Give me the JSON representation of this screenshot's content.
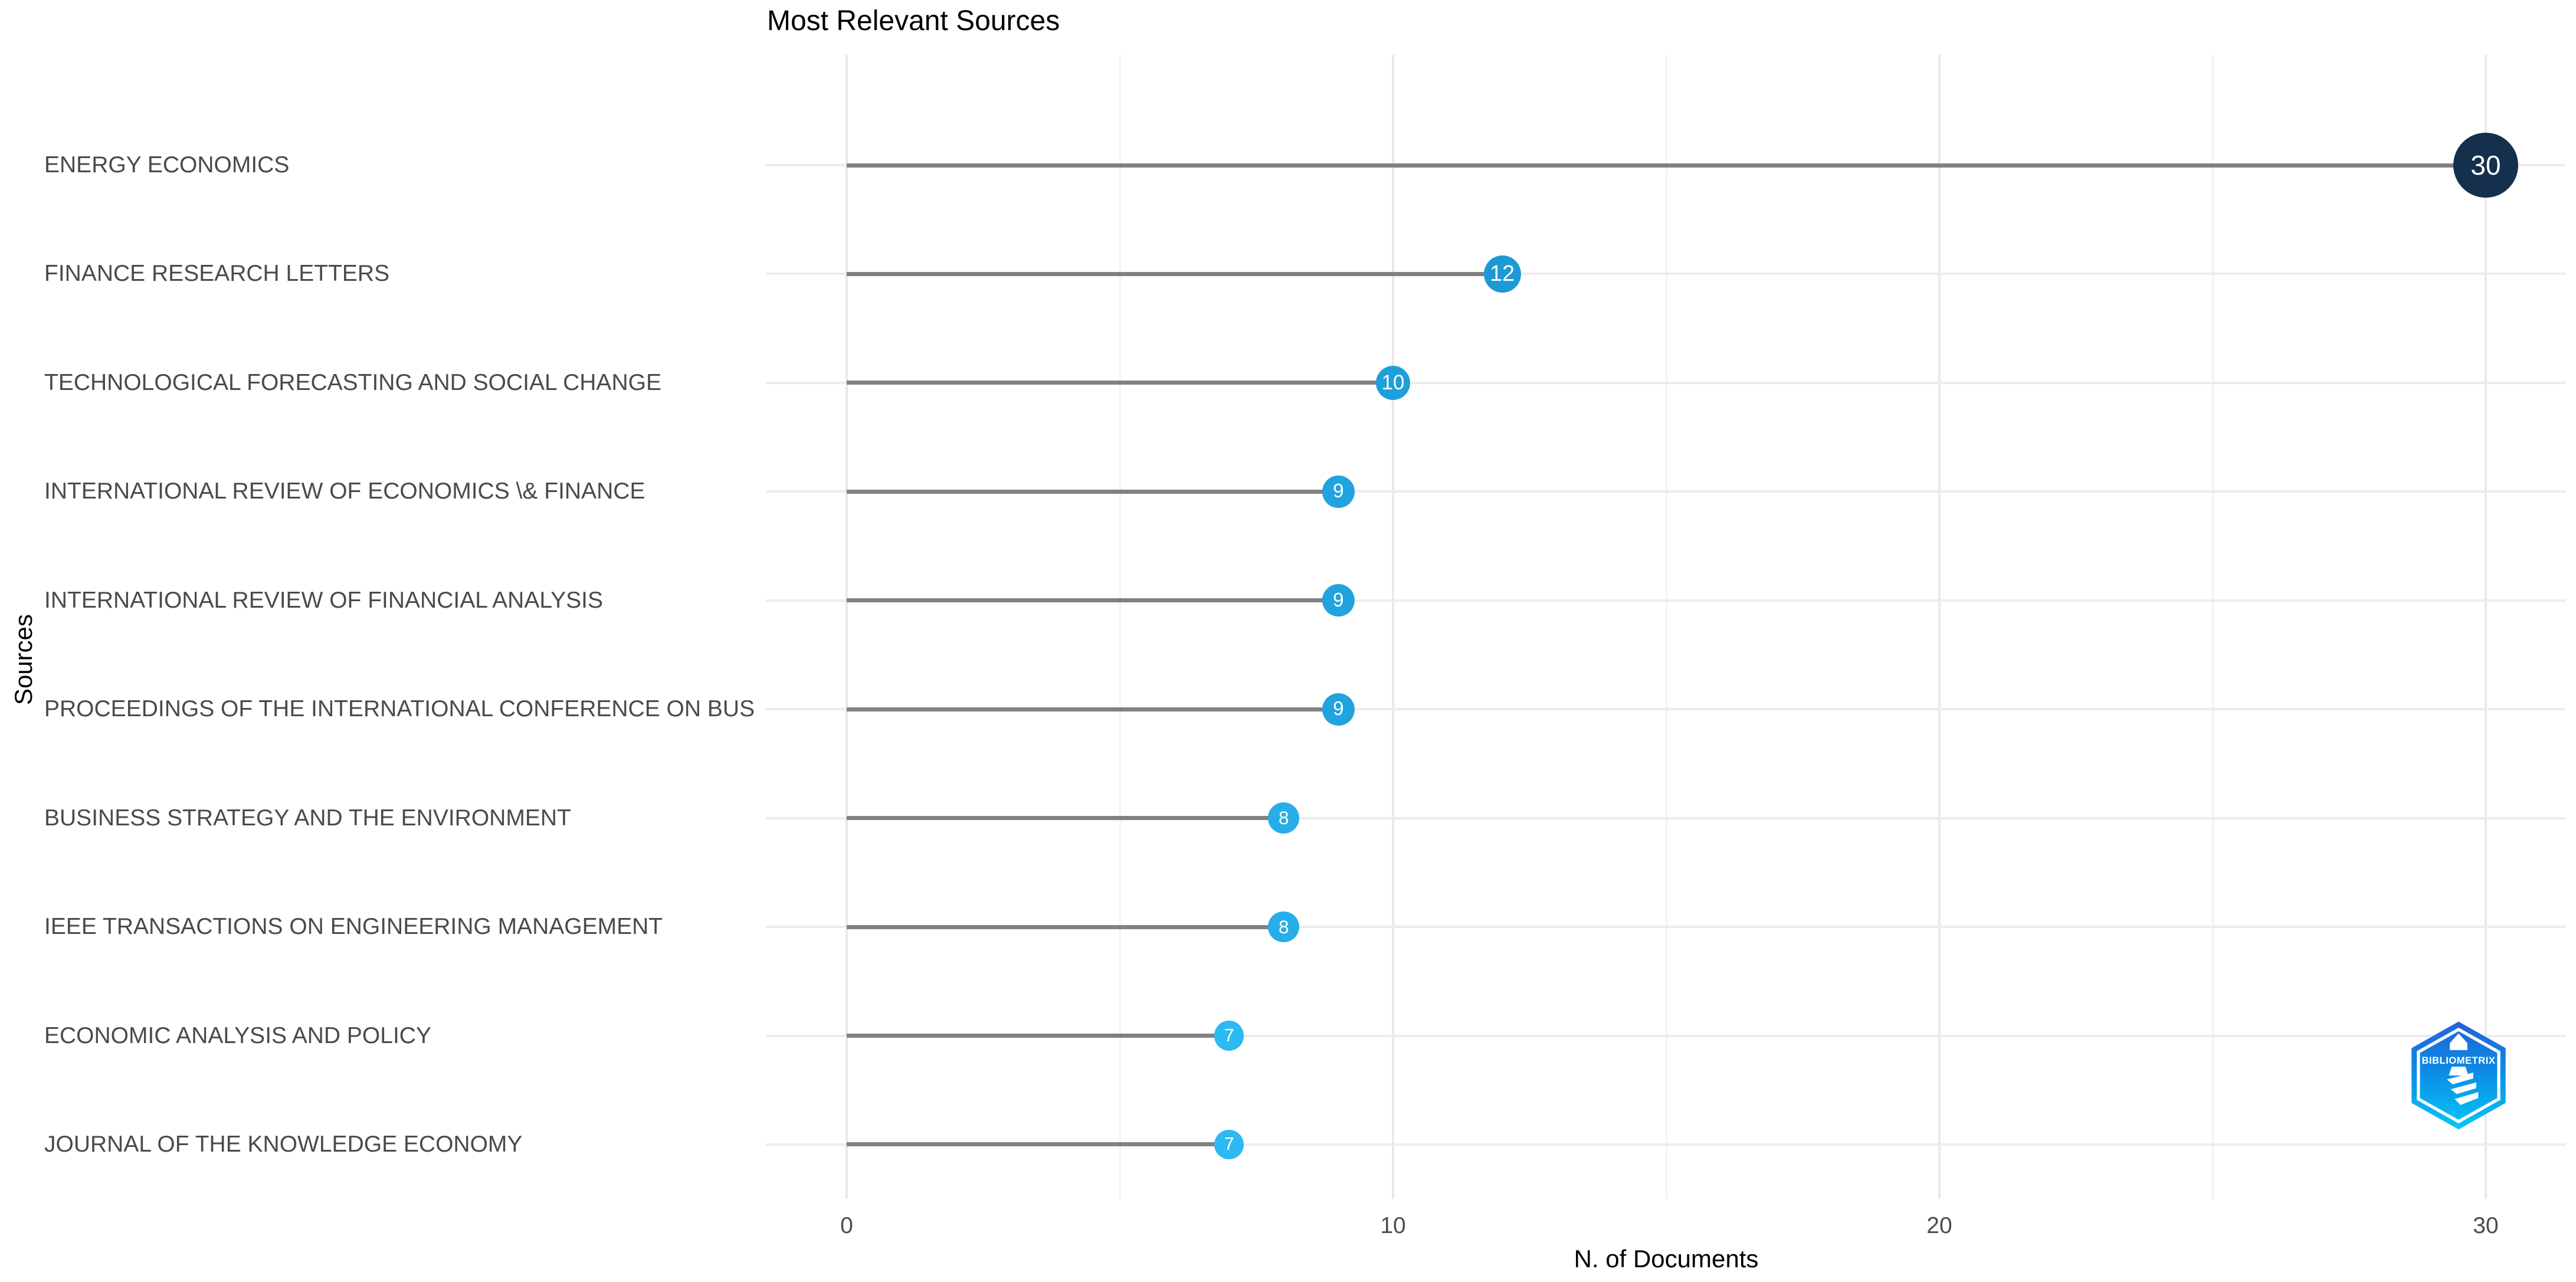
{
  "title": "Most Relevant Sources",
  "x_axis": {
    "label": "N. of Documents",
    "tick_labels": [
      "0",
      "10",
      "20",
      "30"
    ]
  },
  "y_axis": {
    "label": "Sources"
  },
  "chart_data": {
    "type": "lollipop",
    "orientation": "horizontal",
    "title": "Most Relevant Sources",
    "xlabel": "N. of Documents",
    "ylabel": "Sources",
    "categories": [
      "ENERGY ECONOMICS",
      "FINANCE RESEARCH LETTERS",
      "TECHNOLOGICAL FORECASTING AND SOCIAL CHANGE",
      "INTERNATIONAL REVIEW OF ECONOMICS \\& FINANCE",
      "INTERNATIONAL REVIEW OF FINANCIAL ANALYSIS",
      "PROCEEDINGS OF THE INTERNATIONAL CONFERENCE ON BUS",
      "BUSINESS STRATEGY AND THE ENVIRONMENT",
      "IEEE TRANSACTIONS ON ENGINEERING MANAGEMENT",
      "ECONOMIC ANALYSIS AND POLICY",
      "JOURNAL OF THE KNOWLEDGE ECONOMY"
    ],
    "values": [
      30,
      12,
      10,
      9,
      9,
      9,
      8,
      8,
      7,
      7
    ],
    "point_colors": [
      "#14304c",
      "#1d9ad6",
      "#1f9fda",
      "#21a3de",
      "#21a3de",
      "#21a3de",
      "#27aee8",
      "#27aee8",
      "#2db9f1",
      "#2db9f1"
    ],
    "value_label_color": "#ffffff",
    "xlim": [
      0,
      31.5
    ],
    "x_major_ticks": [
      0,
      10,
      20,
      30
    ],
    "x_minor_gridlines": [
      5,
      15,
      25
    ],
    "grid": true,
    "legend": "none",
    "stem_color": "#818181",
    "major_gridline_color": "#e9e9e9",
    "minor_gridline_color": "#f2f2f2",
    "row_gridline_color": "#ececec",
    "category_label_color": "#4a4a4a",
    "tick_label_color": "#4d4d4d",
    "background": "#ffffff"
  },
  "logo": {
    "text": "BIBLIOMETRIX"
  }
}
